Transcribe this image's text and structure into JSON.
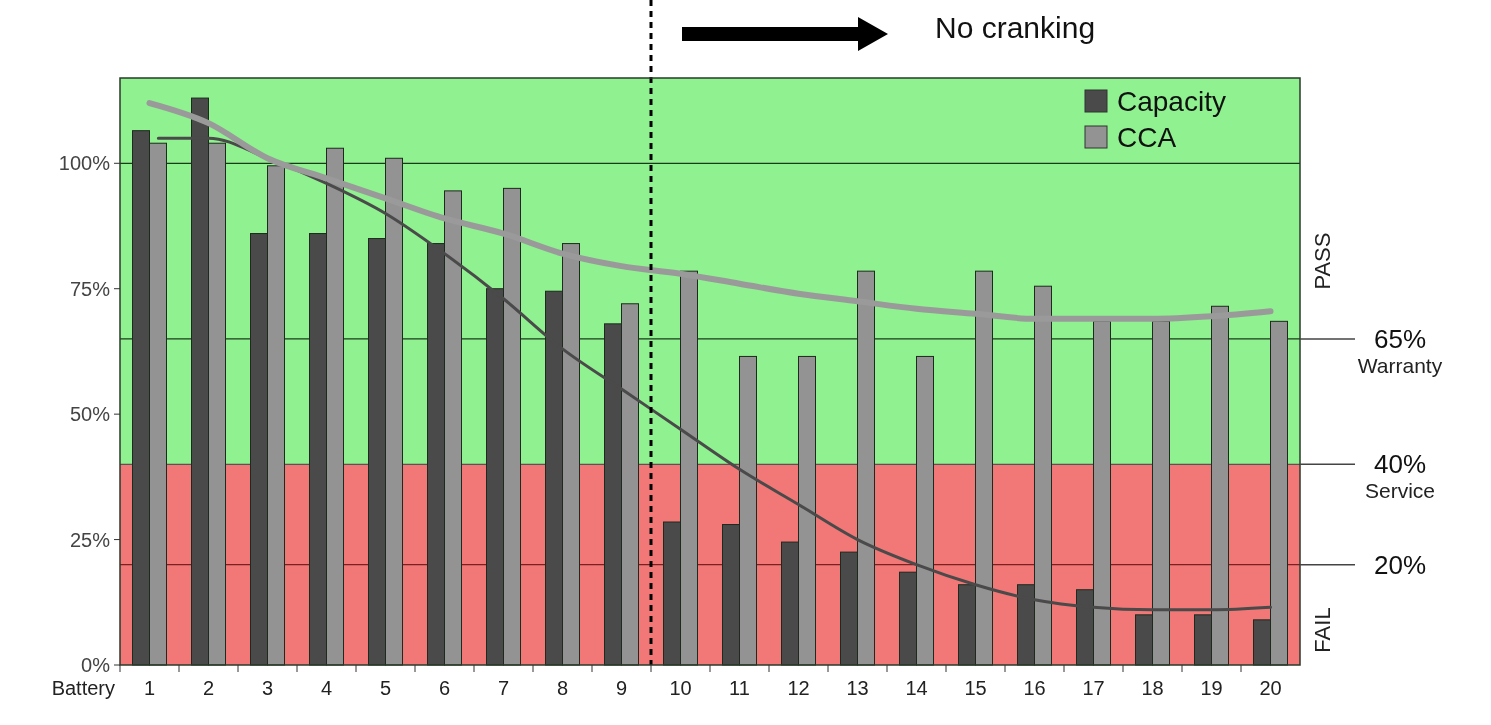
{
  "chart_data": {
    "type": "bar",
    "xlabel": "Battery",
    "x": [
      1,
      2,
      3,
      4,
      5,
      6,
      7,
      8,
      9,
      10,
      11,
      12,
      13,
      14,
      15,
      16,
      17,
      18,
      19,
      20
    ],
    "xlim": [
      0.5,
      20.5
    ],
    "xticks": [
      1,
      2,
      3,
      4,
      5,
      6,
      7,
      8,
      9,
      10,
      11,
      12,
      13,
      14,
      15,
      16,
      17,
      18,
      19,
      20
    ],
    "ylim": [
      0,
      117
    ],
    "yticks": [
      {
        "value": 0,
        "label": "0%"
      },
      {
        "value": 25,
        "label": "25%"
      },
      {
        "value": 50,
        "label": "50%"
      },
      {
        "value": 75,
        "label": "75%"
      },
      {
        "value": 100,
        "label": "100%"
      }
    ],
    "series": [
      {
        "name": "Capacity",
        "color": "#4a4a4a",
        "values": [
          106.5,
          113,
          86,
          86,
          85,
          84,
          75,
          74.5,
          68,
          28.5,
          28,
          24.5,
          22.5,
          18.5,
          16,
          16,
          15,
          10,
          10,
          9
        ]
      },
      {
        "name": "CCA",
        "color": "#939393",
        "values": [
          104,
          104,
          99.5,
          103,
          101,
          94.5,
          95,
          84,
          72,
          78.5,
          61.5,
          61.5,
          78.5,
          61.5,
          78.5,
          75.5,
          68.5,
          68.5,
          71.5,
          68.5
        ]
      },
      {
        "type": "line",
        "color": "#4a4a4a",
        "x": [
          1.15,
          2,
          3,
          4,
          5,
          6,
          7,
          8,
          9,
          10,
          11,
          12,
          13,
          14,
          15,
          16,
          17,
          18,
          19,
          20
        ],
        "values": [
          105,
          105,
          101,
          96,
          90,
          82,
          73,
          63,
          55,
          47,
          39,
          32,
          25,
          20,
          16,
          13,
          11.5,
          11,
          11,
          11.5
        ]
      },
      {
        "type": "line",
        "color": "#9a9a9a",
        "values": [
          112,
          108,
          101,
          97,
          93,
          89,
          86,
          82,
          79.5,
          78,
          76,
          74,
          72.5,
          71,
          70,
          69,
          69,
          69,
          69.5,
          70.5
        ]
      }
    ],
    "bands": [
      {
        "axis": "y",
        "from": 40,
        "to": 117,
        "label": "PASS",
        "color": "#8ff18f"
      },
      {
        "axis": "y",
        "from": 0,
        "to": 40,
        "label": "FAIL",
        "color": "#f27777"
      }
    ],
    "ref_lines": [
      {
        "axis": "y",
        "value": 100,
        "color": "#1a3a1a"
      },
      {
        "axis": "y",
        "value": 65,
        "label": "65% Warranty",
        "color": "#1a3a1a"
      },
      {
        "axis": "y",
        "value": 40,
        "label": "40% Service",
        "color": "#555555"
      },
      {
        "axis": "y",
        "value": 20,
        "label": "20%",
        "color": "#7a2020"
      },
      {
        "axis": "x",
        "value": 9.5,
        "color": "#000000",
        "line_style": "dashed"
      }
    ],
    "annotations": [
      "No cranking"
    ],
    "legend": "top right",
    "grid": false
  }
}
